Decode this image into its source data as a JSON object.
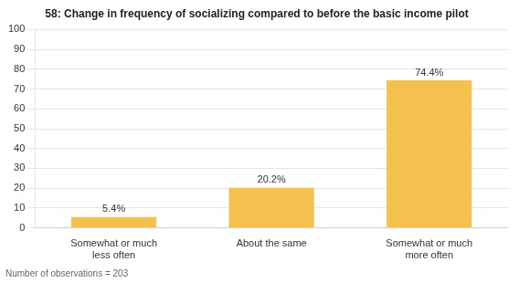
{
  "chart_data": {
    "type": "bar",
    "title": "58: Change in frequency of socializing compared to before the basic income pilot",
    "categories": [
      "Somewhat or much\nless often",
      "About the same",
      "Somewhat or much\nmore often"
    ],
    "values": [
      5.4,
      20.2,
      74.4
    ],
    "value_labels": [
      "5.4%",
      "20.2%",
      "74.4%"
    ],
    "data_labels": true,
    "color": "#F5C14E",
    "ylim": [
      0,
      100
    ],
    "yticks": [
      0,
      10,
      20,
      30,
      40,
      50,
      60,
      70,
      80,
      90,
      100
    ],
    "grid": true,
    "footnote": "Number of observations = 203"
  }
}
